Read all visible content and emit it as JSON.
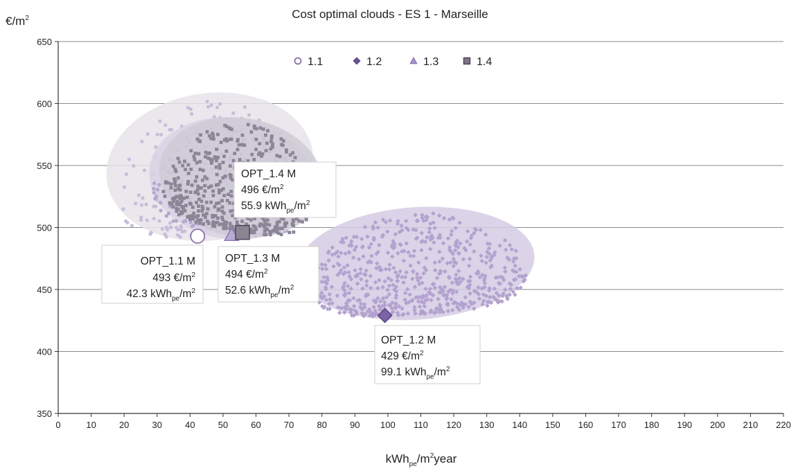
{
  "chart_data": {
    "type": "scatter",
    "title": "Cost optimal clouds - ES 1 - Marseille",
    "ylabel": {
      "base": "€/m",
      "sup": "2"
    },
    "xlabel": {
      "base": "kWh",
      "sub": "pe",
      "mid": "/m",
      "sup": "2",
      "end": "year"
    },
    "xlim": [
      0,
      220
    ],
    "ylim": [
      350,
      650
    ],
    "x_ticks": [
      0,
      10,
      20,
      30,
      40,
      50,
      60,
      70,
      80,
      90,
      100,
      110,
      120,
      130,
      140,
      150,
      160,
      170,
      180,
      190,
      200,
      210,
      220
    ],
    "y_ticks": [
      350,
      400,
      450,
      500,
      550,
      600,
      650
    ],
    "grid": "horizontal",
    "legend_position": "top-center",
    "series": [
      {
        "name": "1.1",
        "marker": "circle",
        "color": "#c9bcd9",
        "stroke": "#8a74ad",
        "cloud": {
          "x_range": [
            17,
            75
          ],
          "y_range": [
            493,
            605
          ]
        },
        "optimum": {
          "x": 42.3,
          "y": 493
        }
      },
      {
        "name": "1.2",
        "marker": "diamond",
        "color": "#b3a2cf",
        "stroke": "#5e4486",
        "cloud": {
          "x_range": [
            75,
            142
          ],
          "y_range": [
            429,
            513
          ]
        },
        "optimum": {
          "x": 99.1,
          "y": 429
        }
      },
      {
        "name": "1.3",
        "marker": "triangle",
        "color": "#b3a6cf",
        "stroke": "#8f7bb6",
        "cloud": {
          "x_range": [
            30,
            75
          ],
          "y_range": [
            494,
            585
          ]
        },
        "optimum": {
          "x": 52.6,
          "y": 494
        }
      },
      {
        "name": "1.4",
        "marker": "square",
        "color": "#8c8597",
        "stroke": "#4d4658",
        "cloud": {
          "x_range": [
            33,
            78
          ],
          "y_range": [
            496,
            585
          ]
        },
        "optimum": {
          "x": 55.9,
          "y": 496
        }
      }
    ],
    "annotations": [
      {
        "id": "a11",
        "line1": "OPT_1.1 M",
        "value": "493 €/m",
        "value_sup": "2",
        "energy": "42.3 kWh",
        "energy_sub": "pe",
        "energy_tail": "/m",
        "energy_sup": "2",
        "align": "right"
      },
      {
        "id": "a12",
        "line1": "OPT_1.2 M",
        "value": "429 €/m",
        "value_sup": "2",
        "energy": "99.1 kWh",
        "energy_sub": "pe",
        "energy_tail": "/m",
        "energy_sup": "2",
        "align": "left"
      },
      {
        "id": "a13",
        "line1": "OPT_1.3 M",
        "value": "494 €/m",
        "value_sup": "2",
        "energy": "52.6 kWh",
        "energy_sub": "pe",
        "energy_tail": "/m",
        "energy_sup": "2",
        "align": "left"
      },
      {
        "id": "a14",
        "line1": "OPT_1.4 M",
        "value": "496 €/m",
        "value_sup": "2",
        "energy": "55.9 kWh",
        "energy_sub": "pe",
        "energy_tail": "/m",
        "energy_sup": "2",
        "align": "left"
      }
    ]
  }
}
